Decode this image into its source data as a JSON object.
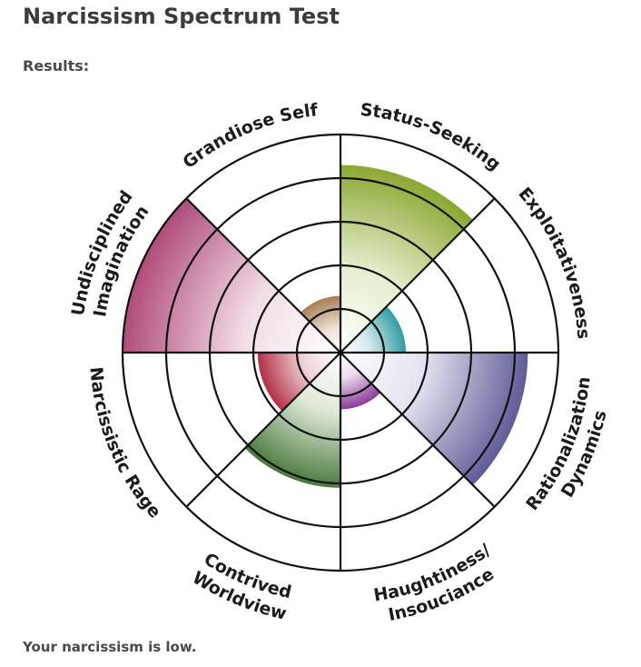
{
  "page": {
    "title": "Narcissism Spectrum Test",
    "results_label": "Results:",
    "conclusion": "Your narcissism is low."
  },
  "chart_data": {
    "type": "polar-area",
    "max": 5,
    "grid_rings": 5,
    "categories": [
      {
        "lines": [
          "Status-Seeking"
        ],
        "value": 4.3,
        "color": "#8aa832",
        "color_light": "#e6efd0"
      },
      {
        "lines": [
          "Exploitativeness"
        ],
        "value": 1.5,
        "color": "#2f9ca3",
        "color_light": "#d6ecee"
      },
      {
        "lines": [
          "Rationalization",
          "Dynamics"
        ],
        "value": 4.3,
        "color": "#5e5c98",
        "color_light": "#e4e3f0"
      },
      {
        "lines": [
          "Haughtiness/",
          "Insouciance"
        ],
        "value": 1.3,
        "color": "#8b3a9a",
        "color_light": "#ecdcef"
      },
      {
        "lines": [
          "Contrived",
          "Worldview"
        ],
        "value": 3.1,
        "color": "#4b7a3e",
        "color_light": "#dde9d7"
      },
      {
        "lines": [
          "Narcissistic Rage"
        ],
        "value": 1.9,
        "color": "#b23045",
        "color_light": "#f1d5d9"
      },
      {
        "lines": [
          "Undisciplined",
          "Imagination"
        ],
        "value": 5.0,
        "color": "#b04c7a",
        "color_light": "#f2dde6"
      },
      {
        "lines": [
          "Grandiose Self"
        ],
        "value": 1.3,
        "color": "#a87e55",
        "color_light": "#eee2d4"
      }
    ]
  }
}
